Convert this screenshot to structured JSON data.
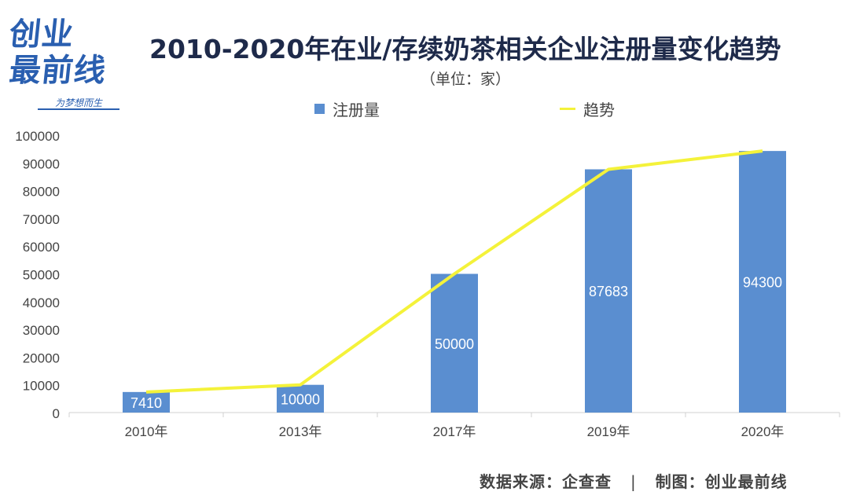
{
  "logo": {
    "line1": "创业",
    "line2": "最前线",
    "slogan": "为梦想而生",
    "brand_color": "#2a5fb0"
  },
  "chart_data": {
    "type": "bar",
    "title": "2010-2020年在业/存续奶茶相关企业注册量变化趋势",
    "subtitle": "（单位：家）",
    "categories": [
      "2010年",
      "2013年",
      "2017年",
      "2019年",
      "2020年"
    ],
    "series": [
      {
        "name": "注册量",
        "kind": "bar",
        "color": "#5a8ed0",
        "values": [
          7410,
          10000,
          50000,
          87683,
          94300
        ]
      },
      {
        "name": "趋势",
        "kind": "line",
        "color": "#f4f23a",
        "values": [
          7410,
          10000,
          50000,
          87683,
          94300
        ]
      }
    ],
    "data_labels": [
      "7410",
      "10000",
      "50000",
      "87683",
      "94300"
    ],
    "ylim": [
      0,
      100000
    ],
    "yticks": [
      0,
      10000,
      20000,
      30000,
      40000,
      50000,
      60000,
      70000,
      80000,
      90000,
      100000
    ],
    "ytick_labels": [
      "0",
      "10000",
      "20000",
      "30000",
      "40000",
      "50000",
      "60000",
      "70000",
      "80000",
      "90000",
      "100000"
    ],
    "legend_position": "top",
    "grid": false
  },
  "footer": {
    "source_label": "数据来源：企查查",
    "separator": "|",
    "credit_label": "制图：创业最前线"
  }
}
